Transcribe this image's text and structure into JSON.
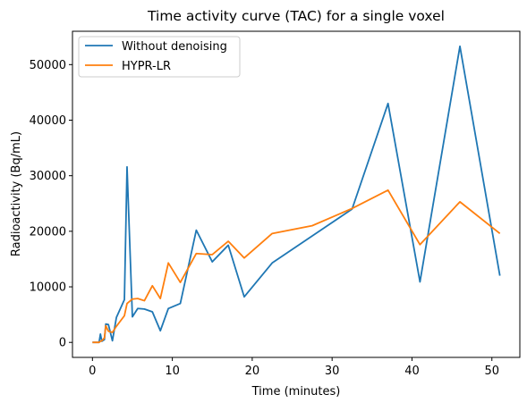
{
  "chart_data": {
    "type": "line",
    "title": "Time activity curve (TAC) for a single voxel",
    "xlabel": "Time (minutes)",
    "ylabel": "Radioactivity (Bq/mL)",
    "xlim": [
      -2.5,
      53.5
    ],
    "ylim": [
      -2700,
      56000
    ],
    "xticks": [
      0,
      10,
      20,
      30,
      40,
      50
    ],
    "yticks": [
      0,
      10000,
      20000,
      30000,
      40000,
      50000
    ],
    "grid": false,
    "legend_position": "top-left",
    "series": [
      {
        "name": "Without denoising",
        "color": "#1f77b4",
        "x": [
          0,
          0.67,
          0.83,
          1.0,
          1.17,
          1.5,
          1.67,
          2.0,
          2.5,
          3.0,
          4.0,
          4.33,
          5.0,
          5.67,
          6.5,
          7.5,
          8.5,
          9.5,
          11.0,
          13.0,
          15.0,
          17.0,
          19.0,
          22.5,
          32.5,
          37.0,
          41.0,
          46.0,
          51.0
        ],
        "values": [
          0,
          0,
          0,
          1500,
          200,
          500,
          3300,
          3200,
          300,
          4500,
          7700,
          31600,
          4600,
          6100,
          6000,
          5500,
          2100,
          6100,
          7000,
          20200,
          14500,
          17500,
          8200,
          14300,
          24000,
          43000,
          10900,
          53300,
          12000
        ]
      },
      {
        "name": "HYPR-LR",
        "color": "#ff7f0e",
        "x": [
          0,
          0.67,
          0.83,
          1.0,
          1.17,
          1.5,
          1.67,
          2.0,
          2.5,
          3.0,
          4.0,
          4.33,
          5.0,
          5.67,
          6.5,
          7.5,
          8.5,
          9.5,
          11.0,
          13.0,
          15.0,
          17.0,
          19.0,
          22.5,
          27.5,
          32.5,
          37.0,
          41.0,
          46.0,
          51.0
        ],
        "values": [
          0,
          0,
          0,
          200,
          300,
          800,
          3000,
          2000,
          1800,
          2900,
          4800,
          7000,
          7800,
          7900,
          7500,
          10200,
          7900,
          14300,
          10800,
          16000,
          15800,
          18200,
          15200,
          19600,
          21000,
          24100,
          27400,
          17600,
          25300,
          19600
        ]
      }
    ]
  }
}
